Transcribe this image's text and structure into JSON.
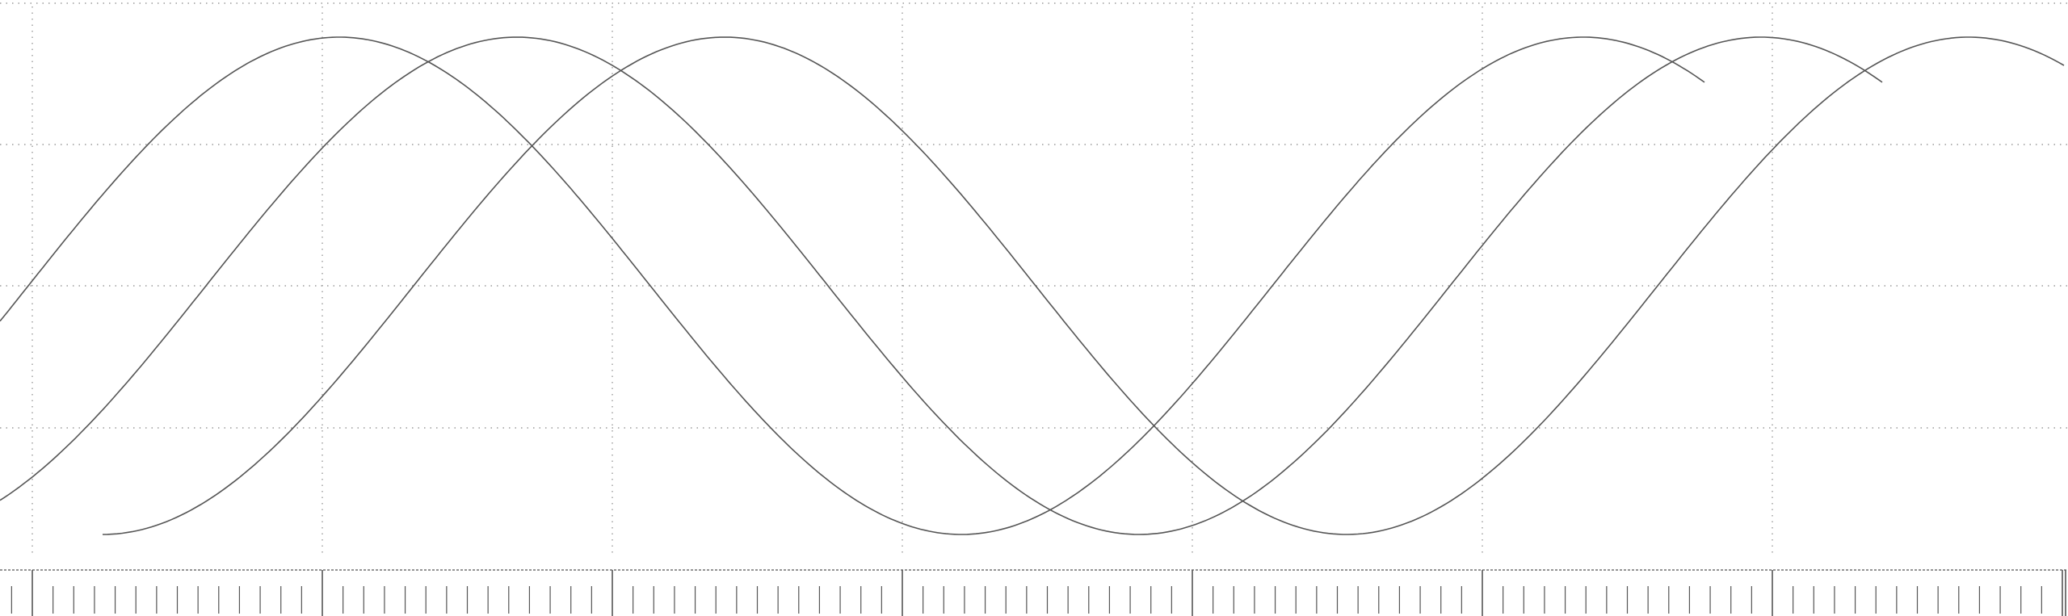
{
  "chart_data": {
    "type": "line",
    "title": "",
    "xlabel": "",
    "ylabel": "",
    "xlim": [
      0,
      1
    ],
    "ylim": [
      0,
      1
    ],
    "grid": true,
    "x_grid_lines": 7,
    "y_grid_lines": 4,
    "ruler": {
      "major_ticks": 8,
      "minor_per_major": 13
    },
    "series": [
      {
        "phase": 0.0,
        "points": 120
      },
      {
        "phase": 0.22,
        "points": 120
      },
      {
        "phase": 0.44,
        "points": 120
      }
    ],
    "curve_shape": "raised-cosine wave, two full periods per series",
    "colors": {
      "curve": "#555555",
      "grid": "#9a9a9a",
      "ruler": "#555555",
      "background": "#ffffff"
    }
  }
}
